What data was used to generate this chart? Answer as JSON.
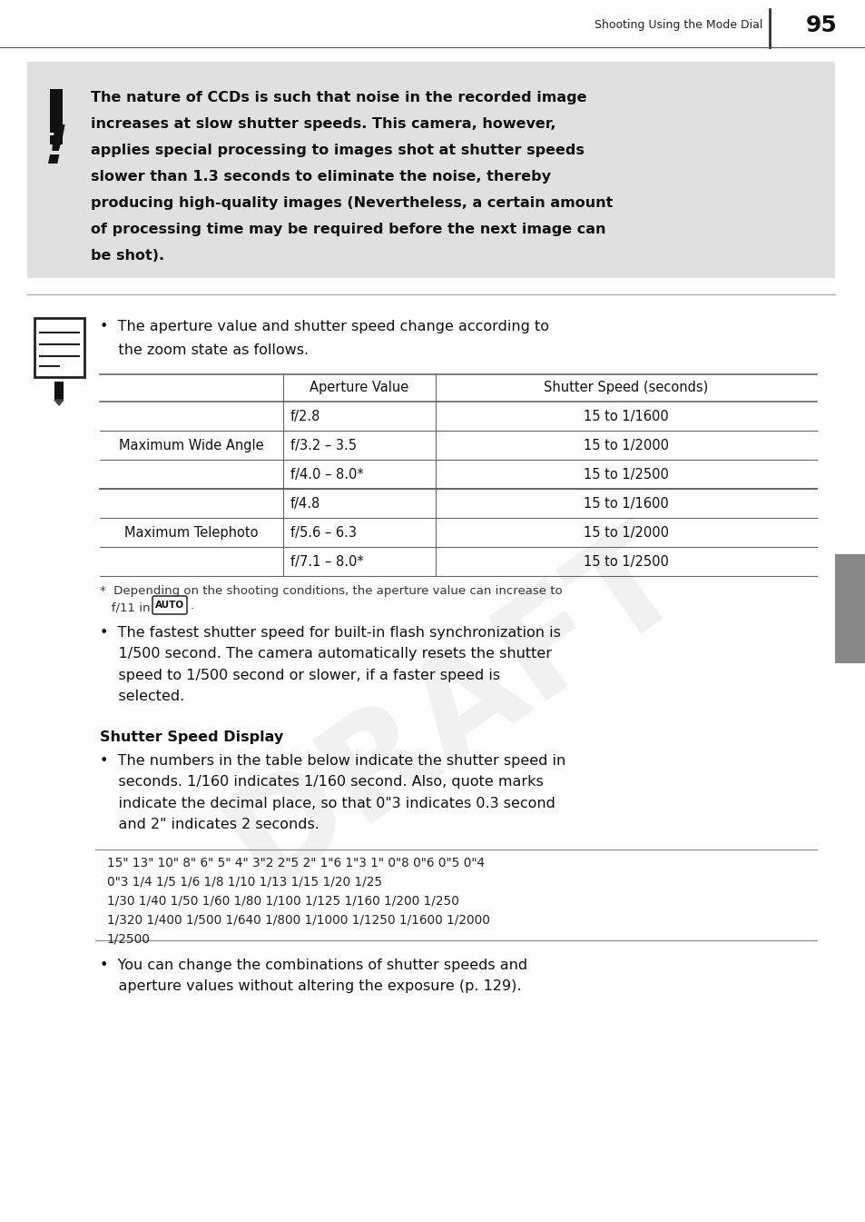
{
  "page_title": "Shooting Using the Mode Dial",
  "page_number": "95",
  "background_color": "#ffffff",
  "warning_box_color": "#e0e0e0",
  "warning_text_line1": "The nature of CCDs is such that noise in the recorded image",
  "warning_text_line2": "increases at slow shutter speeds. This camera, however,",
  "warning_text_line3": "applies special processing to images shot at shutter speeds",
  "warning_text_line4": "slower than 1.3 seconds to eliminate the noise, thereby",
  "warning_text_line5": "producing high-quality images (Nevertheless, a certain amount",
  "warning_text_line6": "of processing time may be required before the next image can",
  "warning_text_line7": "be shot).",
  "bullet1_line1": "•  The aperture value and shutter speed change according to",
  "bullet1_line2": "    the zoom state as follows.",
  "table_header_col2": "Aperture Value",
  "table_header_col3": "Shutter Speed (seconds)",
  "table_rows": [
    [
      "",
      "f/2.8",
      "15 to 1/1600"
    ],
    [
      "Maximum Wide Angle",
      "f/3.2 – 3.5",
      "15 to 1/2000"
    ],
    [
      "",
      "f/4.0 – 8.0*",
      "15 to 1/2500"
    ],
    [
      "",
      "f/4.8",
      "15 to 1/1600"
    ],
    [
      "Maximum Telephoto",
      "f/5.6 – 6.3",
      "15 to 1/2000"
    ],
    [
      "",
      "f/7.1 – 8.0*",
      "15 to 1/2500"
    ]
  ],
  "footnote_line1": "*  Depending on the shooting conditions, the aperture value can increase to",
  "footnote_line2": "   f/11 in",
  "auto_badge": "AUTO",
  "bullet2": "•  The fastest shutter speed for built-in flash synchronization is\n    1/500 second. The camera automatically resets the shutter\n    speed to 1/500 second or slower, if a faster speed is\n    selected.",
  "section_header": "Shutter Speed Display",
  "bullet3": "•  The numbers in the table below indicate the shutter speed in\n    seconds. 1/160 indicates 1/160 second. Also, quote marks\n    indicate the decimal place, so that 0\"3 indicates 0.3 second\n    and 2\" indicates 2 seconds.",
  "speed_table_text": "15\" 13\" 10\" 8\" 6\" 5\" 4\" 3\"2 2\"5 2\" 1\"6 1\"3 1\" 0\"8 0\"6 0\"5 0\"4\n0\"3 1/4 1/5 1/6 1/8 1/10 1/13 1/15 1/20 1/25\n1/30 1/40 1/50 1/60 1/80 1/100 1/125 1/160 1/200 1/250\n1/320 1/400 1/500 1/640 1/800 1/1000 1/1250 1/1600 1/2000\n1/2500",
  "bullet4": "•  You can change the combinations of shutter speeds and\n    aperture values without altering the exposure (p. 129).",
  "sidebar_color": "#888888",
  "table_line_color": "#666666",
  "draft_watermark_color": "#cccccc",
  "main_font_size": 11.5,
  "small_font_size": 9.5,
  "table_font_size": 10.5
}
